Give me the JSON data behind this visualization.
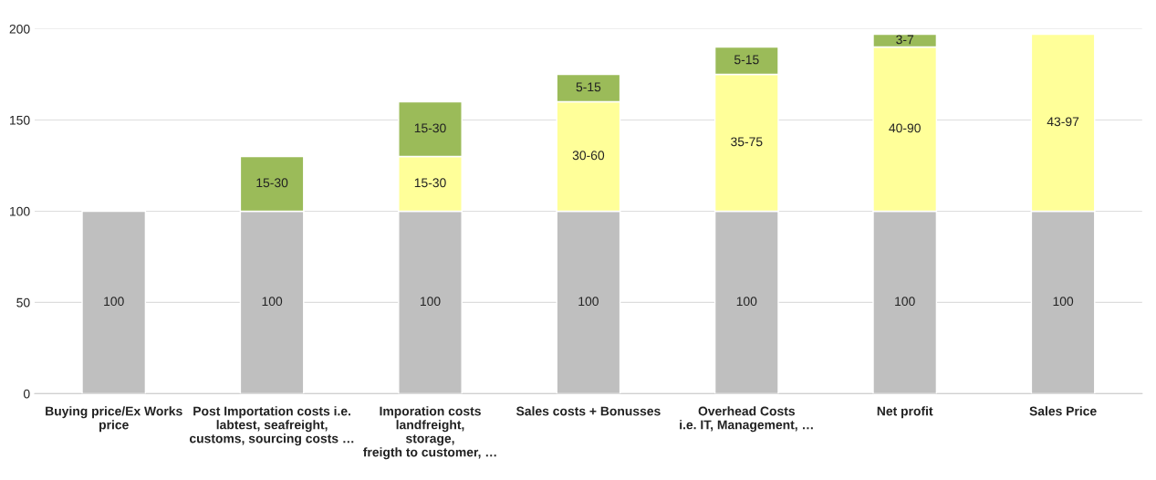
{
  "chart_data": {
    "type": "bar",
    "stacked": true,
    "categories": [
      "Buying price/Ex Works\nprice",
      "Post Importation costs i.e.\nlabtest, seafreight,\ncustoms, sourcing costs …",
      "Imporation costs\nlandfreight,\nstorage,\nfreigth to customer, …",
      "Sales costs + Bonusses",
      "Overhead Costs\ni.e. IT, Management, …",
      "Net profit",
      "Sales Price"
    ],
    "series": [
      {
        "color": "#bfbfbf",
        "values": [
          100,
          100,
          100,
          100,
          100,
          100,
          100
        ],
        "value_labels": [
          "100",
          "100",
          "100",
          "100",
          "100",
          "100",
          "100"
        ]
      },
      {
        "color": "#ffff99",
        "values": [
          null,
          null,
          30,
          60,
          75,
          90,
          97
        ],
        "value_labels": [
          null,
          null,
          "15-30",
          "30-60",
          "35-75",
          "40-90",
          "43-97"
        ]
      },
      {
        "color": "#9bbb59",
        "values": [
          null,
          30,
          30,
          15,
          15,
          7,
          null
        ],
        "value_labels": [
          null,
          "15-30",
          "15-30",
          "5-15",
          "5-15",
          "3-7",
          null
        ]
      }
    ],
    "ylim": [
      0,
      200
    ],
    "yticks": [
      0,
      50,
      100,
      150,
      200
    ],
    "grid": "y",
    "legend": false
  }
}
